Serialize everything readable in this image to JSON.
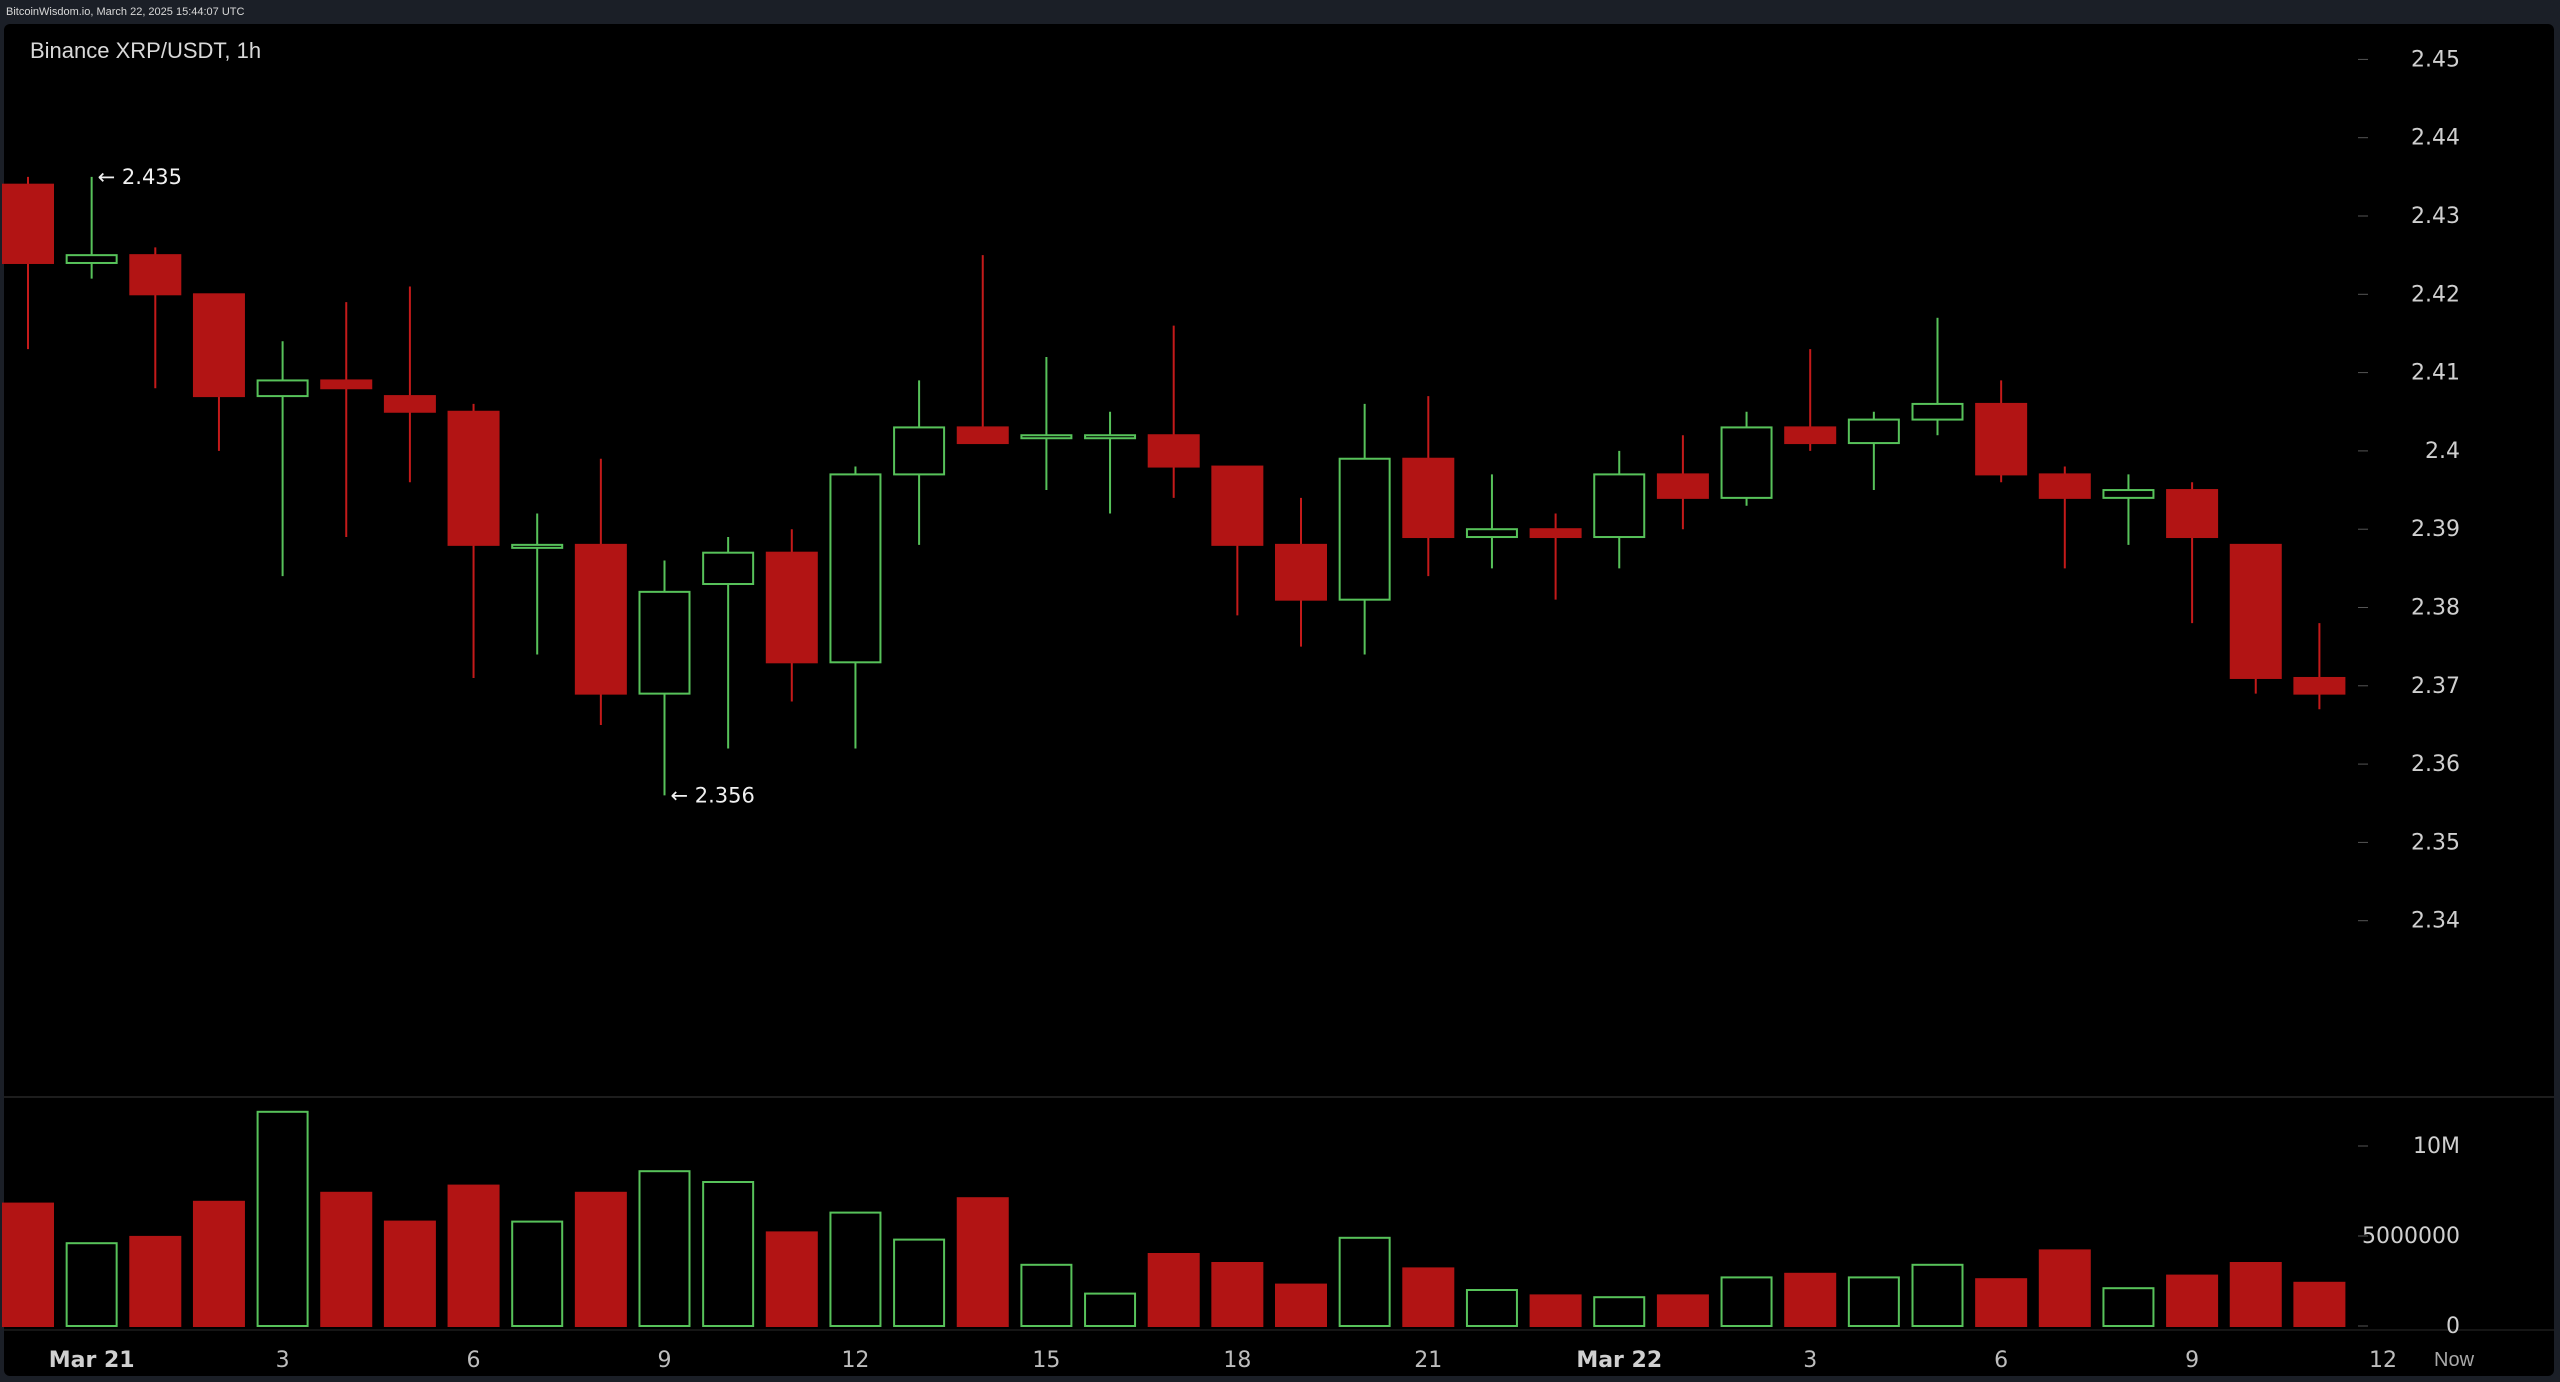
{
  "header": {
    "source_line": "BitcoinWisdom.io, March 22, 2025 15:44:07 UTC"
  },
  "chart_data": {
    "type": "candlestick",
    "title": "Binance XRP/USDT, 1h",
    "interval": "1h",
    "price_axis": {
      "min": 2.33,
      "max": 2.455,
      "ticks": [
        2.34,
        2.35,
        2.36,
        2.37,
        2.38,
        2.39,
        2.4,
        2.41,
        2.42,
        2.43,
        2.44,
        2.45
      ],
      "tick_labels": [
        "2.34",
        "2.35",
        "2.36",
        "2.37",
        "2.38",
        "2.39",
        "2.4",
        "2.41",
        "2.42",
        "2.43",
        "2.44",
        "2.45"
      ]
    },
    "volume_axis": {
      "min": 0,
      "max": 12000000,
      "ticks": [
        0,
        5000000,
        10000000
      ],
      "tick_labels": [
        "0",
        "5000000",
        "10M"
      ]
    },
    "x_labels": [
      {
        "index": 1,
        "label": "Mar 21",
        "bold": true
      },
      {
        "index": 4,
        "label": "3",
        "bold": false
      },
      {
        "index": 7,
        "label": "6",
        "bold": false
      },
      {
        "index": 10,
        "label": "9",
        "bold": false
      },
      {
        "index": 13,
        "label": "12",
        "bold": false
      },
      {
        "index": 16,
        "label": "15",
        "bold": false
      },
      {
        "index": 19,
        "label": "18",
        "bold": false
      },
      {
        "index": 22,
        "label": "21",
        "bold": false
      },
      {
        "index": 25,
        "label": "Mar 22",
        "bold": true
      },
      {
        "index": 28,
        "label": "3",
        "bold": false
      },
      {
        "index": 31,
        "label": "6",
        "bold": false
      },
      {
        "index": 34,
        "label": "9",
        "bold": false
      },
      {
        "index": 37,
        "label": "12",
        "bold": false
      }
    ],
    "now_label": "Now",
    "annotations": [
      {
        "candle": 1,
        "price": 2.435,
        "text": "← 2.435"
      },
      {
        "candle": 10,
        "price": 2.356,
        "text": "← 2.356"
      }
    ],
    "up_color": "#57c25a",
    "down_color": "#b21414",
    "candles": [
      {
        "o": 2.434,
        "h": 2.435,
        "l": 2.413,
        "c": 2.424,
        "v": 6800000
      },
      {
        "o": 2.424,
        "h": 2.435,
        "l": 2.422,
        "c": 2.425,
        "v": 4600000
      },
      {
        "o": 2.425,
        "h": 2.426,
        "l": 2.408,
        "c": 2.42,
        "v": 4950000
      },
      {
        "o": 2.42,
        "h": 2.42,
        "l": 2.4,
        "c": 2.407,
        "v": 6900000
      },
      {
        "o": 2.407,
        "h": 2.414,
        "l": 2.384,
        "c": 2.409,
        "v": 11900000
      },
      {
        "o": 2.409,
        "h": 2.419,
        "l": 2.389,
        "c": 2.408,
        "v": 7400000
      },
      {
        "o": 2.407,
        "h": 2.421,
        "l": 2.396,
        "c": 2.405,
        "v": 5800000
      },
      {
        "o": 2.405,
        "h": 2.406,
        "l": 2.371,
        "c": 2.388,
        "v": 7800000
      },
      {
        "o": 2.388,
        "h": 2.392,
        "l": 2.374,
        "c": 2.388,
        "v": 5800000
      },
      {
        "o": 2.388,
        "h": 2.399,
        "l": 2.365,
        "c": 2.369,
        "v": 7400000
      },
      {
        "o": 2.369,
        "h": 2.386,
        "l": 2.356,
        "c": 2.382,
        "v": 8600000
      },
      {
        "o": 2.383,
        "h": 2.389,
        "l": 2.362,
        "c": 2.387,
        "v": 8000000
      },
      {
        "o": 2.387,
        "h": 2.39,
        "l": 2.368,
        "c": 2.373,
        "v": 5200000
      },
      {
        "o": 2.373,
        "h": 2.398,
        "l": 2.362,
        "c": 2.397,
        "v": 6300000
      },
      {
        "o": 2.397,
        "h": 2.409,
        "l": 2.388,
        "c": 2.403,
        "v": 4800000
      },
      {
        "o": 2.403,
        "h": 2.425,
        "l": 2.401,
        "c": 2.401,
        "v": 7100000
      },
      {
        "o": 2.402,
        "h": 2.412,
        "l": 2.395,
        "c": 2.402,
        "v": 3400000
      },
      {
        "o": 2.402,
        "h": 2.405,
        "l": 2.392,
        "c": 2.402,
        "v": 1800000
      },
      {
        "o": 2.402,
        "h": 2.416,
        "l": 2.394,
        "c": 2.398,
        "v": 4000000
      },
      {
        "o": 2.398,
        "h": 2.398,
        "l": 2.379,
        "c": 2.388,
        "v": 3500000
      },
      {
        "o": 2.388,
        "h": 2.394,
        "l": 2.375,
        "c": 2.381,
        "v": 2300000
      },
      {
        "o": 2.381,
        "h": 2.406,
        "l": 2.374,
        "c": 2.399,
        "v": 4900000
      },
      {
        "o": 2.399,
        "h": 2.407,
        "l": 2.384,
        "c": 2.389,
        "v": 3200000
      },
      {
        "o": 2.389,
        "h": 2.397,
        "l": 2.385,
        "c": 2.39,
        "v": 2000000
      },
      {
        "o": 2.39,
        "h": 2.392,
        "l": 2.381,
        "c": 2.389,
        "v": 1700000
      },
      {
        "o": 2.389,
        "h": 2.4,
        "l": 2.385,
        "c": 2.397,
        "v": 1600000
      },
      {
        "o": 2.397,
        "h": 2.402,
        "l": 2.39,
        "c": 2.394,
        "v": 1700000
      },
      {
        "o": 2.394,
        "h": 2.405,
        "l": 2.393,
        "c": 2.403,
        "v": 2700000
      },
      {
        "o": 2.403,
        "h": 2.413,
        "l": 2.4,
        "c": 2.401,
        "v": 2900000
      },
      {
        "o": 2.401,
        "h": 2.405,
        "l": 2.395,
        "c": 2.404,
        "v": 2700000
      },
      {
        "o": 2.404,
        "h": 2.417,
        "l": 2.402,
        "c": 2.406,
        "v": 3400000
      },
      {
        "o": 2.406,
        "h": 2.409,
        "l": 2.396,
        "c": 2.397,
        "v": 2600000
      },
      {
        "o": 2.397,
        "h": 2.398,
        "l": 2.385,
        "c": 2.394,
        "v": 4200000
      },
      {
        "o": 2.394,
        "h": 2.397,
        "l": 2.388,
        "c": 2.395,
        "v": 2100000
      },
      {
        "o": 2.395,
        "h": 2.396,
        "l": 2.378,
        "c": 2.389,
        "v": 2800000
      },
      {
        "o": 2.388,
        "h": 2.388,
        "l": 2.369,
        "c": 2.371,
        "v": 3500000
      },
      {
        "o": 2.371,
        "h": 2.378,
        "l": 2.367,
        "c": 2.369,
        "v": 2400000
      }
    ]
  }
}
